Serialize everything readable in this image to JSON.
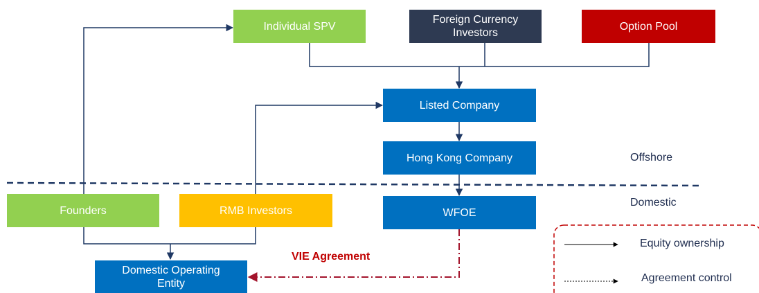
{
  "nodes": [
    {
      "label": "Individual SPV"
    },
    {
      "label": "Foreign Currency Investors"
    },
    {
      "label": "Option Pool"
    },
    {
      "label": "Listed Company"
    },
    {
      "label": "Hong Kong Company"
    },
    {
      "label": "WFOE"
    },
    {
      "label": "Founders"
    },
    {
      "label": "RMB Investors"
    },
    {
      "label": "Domestic Operating Entity"
    }
  ],
  "zones": {
    "offshore": "Offshore",
    "domestic": "Domestic"
  },
  "edge_label": "VIE Agreement",
  "legend": {
    "equity": "Equity ownership",
    "agreement": "Agreement control"
  }
}
